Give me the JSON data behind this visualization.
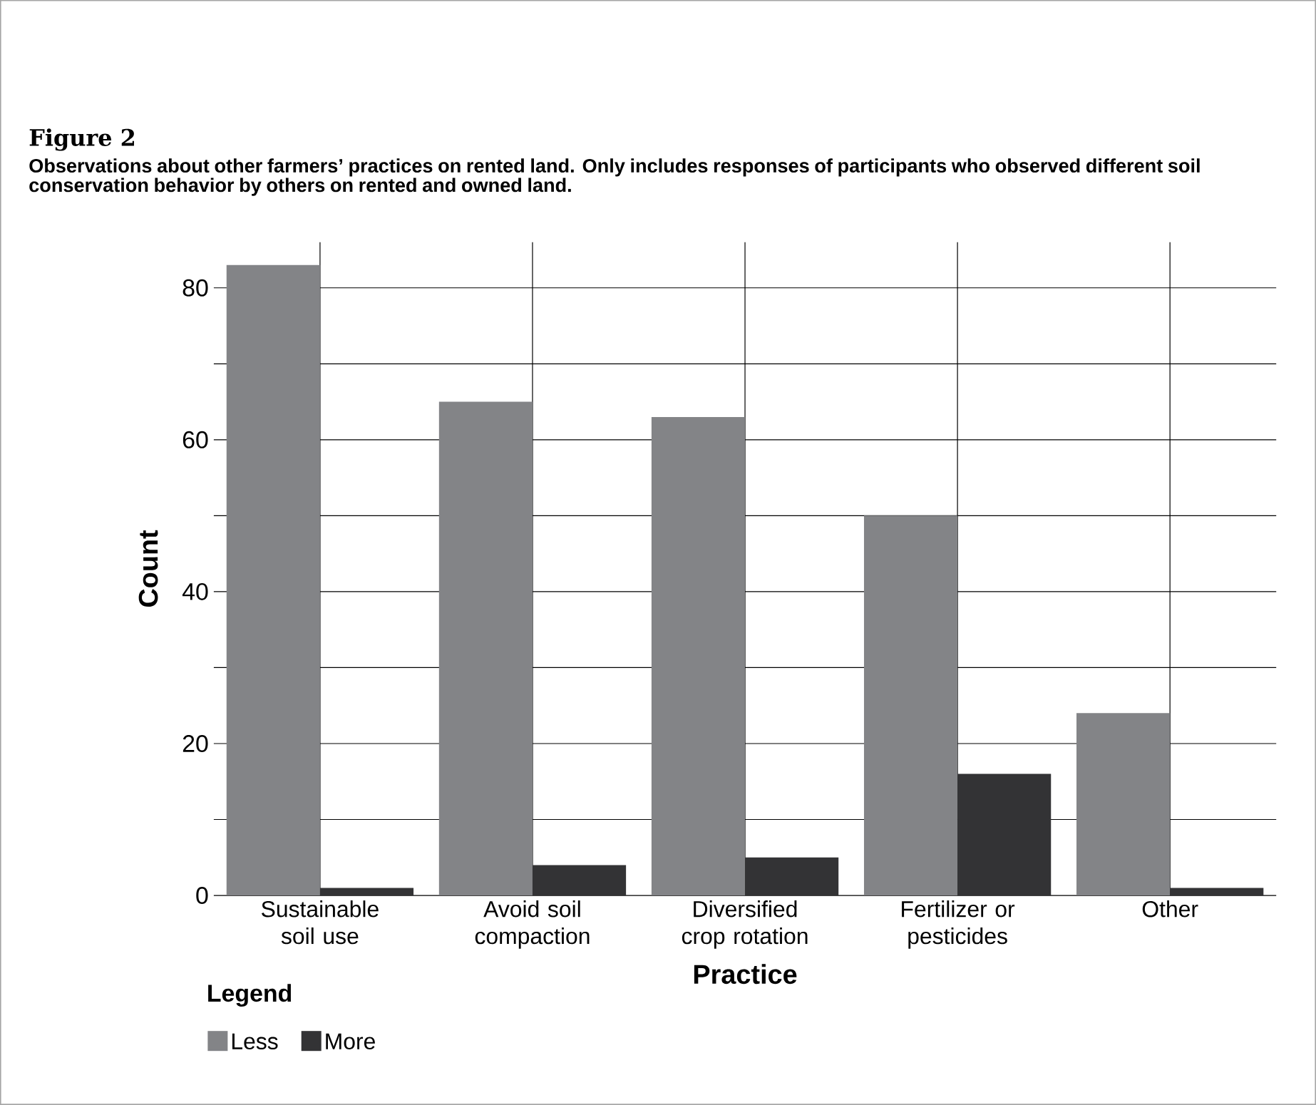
{
  "chart_data": {
    "type": "bar",
    "title": "Figure 2",
    "subtitle": "Observations about other farmers’ practices on rented land. Only includes responses of participants who observed different soil conservation behavior by others on rented and owned land.",
    "xlabel": "Practice",
    "ylabel": "Count",
    "legend_title": "Legend",
    "categories": [
      "Sustainable soil use",
      "Avoid soil compaction",
      "Diversified crop rotation",
      "Fertilizer or pesticides",
      "Other"
    ],
    "series": [
      {
        "name": "Less",
        "color": "#838487",
        "values": [
          83,
          65,
          63,
          50,
          24
        ]
      },
      {
        "name": "More",
        "color": "#333335",
        "values": [
          1,
          4,
          5,
          16,
          1
        ]
      }
    ],
    "ylim": [
      0,
      86
    ],
    "yticks": [
      0,
      {
        "value": 10,
        "label": null
      },
      20,
      {
        "value": 30,
        "label": null
      },
      40,
      {
        "value": 50,
        "label": null
      },
      60,
      {
        "value": 70,
        "label": null
      },
      80
    ],
    "grid": true,
    "legend": "bottom left"
  }
}
